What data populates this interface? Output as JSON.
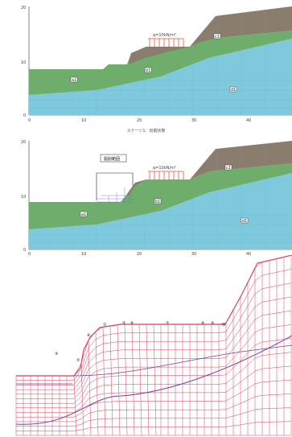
{
  "stage1": {
    "y_ticks": [
      "20",
      "10",
      "0"
    ],
    "x_ticks": [
      "0",
      "10",
      "20",
      "30",
      "40"
    ],
    "load_label": "q=10kN/m²",
    "layer_labels": [
      "a1",
      "b1",
      "c1",
      "d1"
    ]
  },
  "stage1_caption": "ステージ1：初期状態",
  "stage2": {
    "y_ticks": [
      "20",
      "10",
      "0"
    ],
    "x_ticks": [
      "0",
      "10",
      "20",
      "30",
      "40"
    ],
    "excavation_label": "掘削範囲",
    "load_label": "q=10kN/m²",
    "layer_labels": [
      "a1",
      "b1",
      "c1",
      "d1"
    ]
  },
  "mesh": {
    "markers": [
      "①",
      "②",
      "③",
      "④",
      "⑤",
      "⑥",
      "⑦",
      "⑧",
      "⑨",
      "⑩"
    ]
  },
  "colors": {
    "soil_brown": "#8a7d6e",
    "soil_green": "#6fae6a",
    "soil_blue": "#7ec9dc",
    "load_red": "#e0573a",
    "mesh_red": "#d8405a",
    "mesh_purple": "#7a3f9a"
  }
}
